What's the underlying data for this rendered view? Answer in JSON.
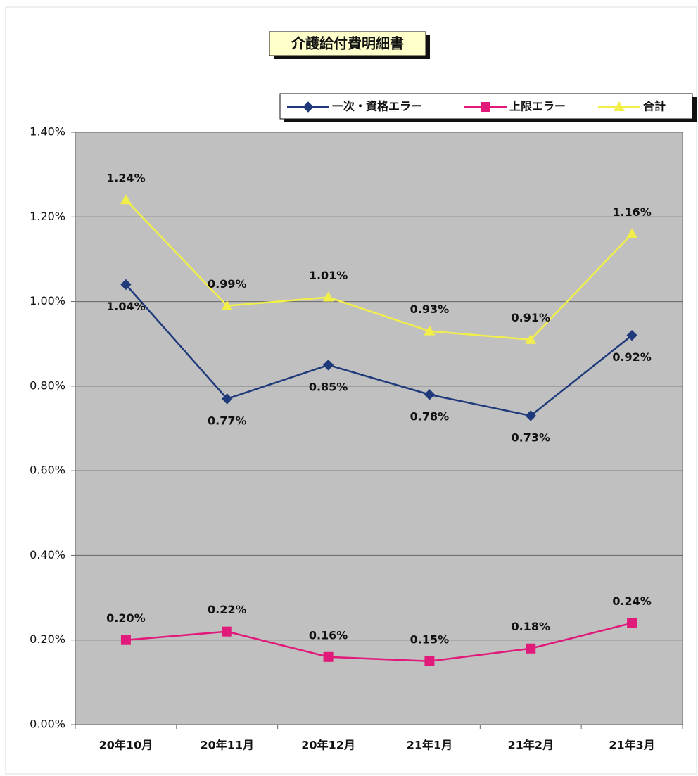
{
  "chart_data": {
    "type": "line",
    "title": "介護給付費明細書",
    "categories": [
      "20年10月",
      "20年11月",
      "20年12月",
      "21年1月",
      "21年2月",
      "21年3月"
    ],
    "series": [
      {
        "name": "一次・資格エラー",
        "color": "#1f3a7a",
        "marker": "diamond",
        "values": [
          1.04,
          0.77,
          0.85,
          0.78,
          0.73,
          0.92
        ],
        "value_labels": [
          "1.04%",
          "0.77%",
          "0.85%",
          "0.78%",
          "0.73%",
          "0.92%"
        ]
      },
      {
        "name": "上限エラー",
        "color": "#e0197a",
        "marker": "square",
        "values": [
          0.2,
          0.22,
          0.16,
          0.15,
          0.18,
          0.24
        ],
        "value_labels": [
          "0.20%",
          "0.22%",
          "0.16%",
          "0.15%",
          "0.18%",
          "0.24%"
        ]
      },
      {
        "name": "合計",
        "color": "#f2ef4a",
        "marker": "triangle",
        "values": [
          1.24,
          0.99,
          1.01,
          0.93,
          0.91,
          1.16
        ],
        "value_labels": [
          "1.24%",
          "0.99%",
          "1.01%",
          "0.93%",
          "0.91%",
          "1.16%"
        ]
      }
    ],
    "ylim": [
      0,
      1.4
    ],
    "yticks": [
      {
        "value": 0,
        "label": "0.00%"
      },
      {
        "value": 0.2,
        "label": "0.20%"
      },
      {
        "value": 0.4,
        "label": "0.40%"
      },
      {
        "value": 0.6,
        "label": "0.60%"
      },
      {
        "value": 0.8,
        "label": "0.80%"
      },
      {
        "value": 1.0,
        "label": "1.00%"
      },
      {
        "value": 1.2,
        "label": "1.20%"
      },
      {
        "value": 1.4,
        "label": "1.40%"
      }
    ],
    "grid": true,
    "legend": "top"
  }
}
